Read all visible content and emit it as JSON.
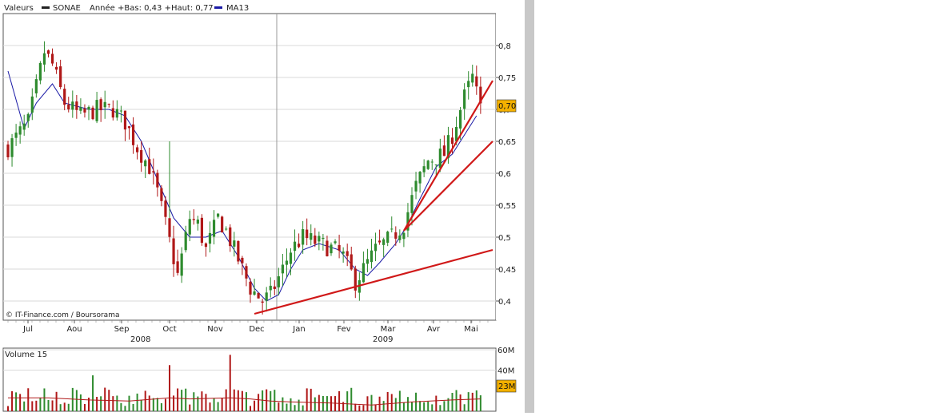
{
  "legend": {
    "prefix": "Valeurs",
    "ticker": "SONAE",
    "range_text": "Année +Bas: 0,43 +Haut: 0,77",
    "ma": "MA13"
  },
  "source": "© IT-Finance.com / Boursorama",
  "volume_label": "Volume 15",
  "last_price_badge": "0,70",
  "last_volume_badge": "23M",
  "colors": {
    "up": "#2e8b2e",
    "down": "#b01818",
    "ma": "#1a1aa6",
    "trend": "#d01818",
    "badge": "#f3b000",
    "frame": "#555555",
    "grid": "#d8d8d8",
    "panel": "#c0c0c0"
  },
  "chart_data": [
    {
      "type": "candlestick",
      "title": "SONAE",
      "x_tick_labels": [
        "Jul",
        "Aou",
        "Sep",
        "Oct",
        "Nov",
        "Dec",
        "Jan",
        "Fev",
        "Mar",
        "Avr",
        "Mai"
      ],
      "x_year_labels": [
        "2008",
        "2009"
      ],
      "y_tick_labels": [
        "0,4",
        "0,45",
        "0,5",
        "0,55",
        "0,6",
        "0,65",
        "0,7",
        "0,75",
        "0,8"
      ],
      "ylim": [
        0.37,
        0.85
      ],
      "grid": true,
      "series": [
        {
          "name": "SONAE",
          "kind": "price"
        },
        {
          "name": "MA13",
          "kind": "moving_average"
        }
      ],
      "price_path": [
        [
          0,
          0.64
        ],
        [
          5,
          0.68
        ],
        [
          9,
          0.79
        ],
        [
          11,
          0.77
        ],
        [
          14,
          0.71
        ],
        [
          18,
          0.69
        ],
        [
          22,
          0.7
        ],
        [
          26,
          0.7
        ],
        [
          29,
          0.68
        ],
        [
          32,
          0.64
        ],
        [
          35,
          0.61
        ],
        [
          37,
          0.57
        ],
        [
          39,
          0.52
        ],
        [
          42,
          0.44
        ],
        [
          45,
          0.53
        ],
        [
          47,
          0.52
        ],
        [
          49,
          0.48
        ],
        [
          52,
          0.53
        ],
        [
          54,
          0.51
        ],
        [
          56,
          0.48
        ],
        [
          58,
          0.45
        ],
        [
          60,
          0.42
        ],
        [
          63,
          0.4
        ],
        [
          65,
          0.41
        ],
        [
          68,
          0.45
        ],
        [
          70,
          0.48
        ],
        [
          73,
          0.5
        ],
        [
          77,
          0.49
        ],
        [
          81,
          0.48
        ],
        [
          83,
          0.47
        ],
        [
          86,
          0.43
        ],
        [
          89,
          0.46
        ],
        [
          91,
          0.48
        ],
        [
          95,
          0.5
        ],
        [
          98,
          0.52
        ],
        [
          101,
          0.58
        ],
        [
          104,
          0.62
        ],
        [
          108,
          0.63
        ],
        [
          110,
          0.66
        ],
        [
          113,
          0.72
        ],
        [
          115,
          0.75
        ],
        [
          117,
          0.7
        ]
      ],
      "ma_path": [
        [
          0,
          0.76
        ],
        [
          4,
          0.67
        ],
        [
          7,
          0.71
        ],
        [
          11,
          0.74
        ],
        [
          14,
          0.71
        ],
        [
          20,
          0.7
        ],
        [
          25,
          0.7
        ],
        [
          29,
          0.69
        ],
        [
          33,
          0.65
        ],
        [
          37,
          0.59
        ],
        [
          41,
          0.53
        ],
        [
          45,
          0.5
        ],
        [
          49,
          0.5
        ],
        [
          53,
          0.51
        ],
        [
          57,
          0.47
        ],
        [
          61,
          0.42
        ],
        [
          64,
          0.4
        ],
        [
          67,
          0.41
        ],
        [
          70,
          0.45
        ],
        [
          73,
          0.48
        ],
        [
          77,
          0.49
        ],
        [
          82,
          0.48
        ],
        [
          86,
          0.45
        ],
        [
          89,
          0.44
        ],
        [
          92,
          0.46
        ],
        [
          96,
          0.49
        ],
        [
          99,
          0.52
        ],
        [
          102,
          0.56
        ],
        [
          106,
          0.61
        ],
        [
          110,
          0.63
        ],
        [
          114,
          0.67
        ],
        [
          116,
          0.69
        ]
      ],
      "trendlines": [
        {
          "from": [
            61,
            0.38
          ],
          "to": [
            120,
            0.48
          ]
        },
        {
          "from": [
            98,
            0.51
          ],
          "to": [
            120,
            0.65
          ]
        },
        {
          "from": [
            98,
            0.51
          ],
          "to": [
            120,
            0.745
          ]
        }
      ],
      "spikes": [
        {
          "x": 40,
          "high": 0.65
        }
      ],
      "bars_count": 118
    },
    {
      "type": "bar",
      "title": "Volume 15",
      "y_tick_labels": [
        "60M",
        "40M"
      ],
      "ylim": [
        0,
        60
      ],
      "volume_bars": [],
      "volume_ma_path": [
        [
          0,
          13
        ],
        [
          10,
          13
        ],
        [
          20,
          11
        ],
        [
          30,
          10
        ],
        [
          40,
          13
        ],
        [
          45,
          12
        ],
        [
          55,
          13
        ],
        [
          60,
          12
        ],
        [
          65,
          10
        ],
        [
          70,
          9
        ],
        [
          80,
          8
        ],
        [
          90,
          6
        ],
        [
          100,
          9
        ],
        [
          110,
          11
        ],
        [
          117,
          12
        ]
      ]
    }
  ]
}
